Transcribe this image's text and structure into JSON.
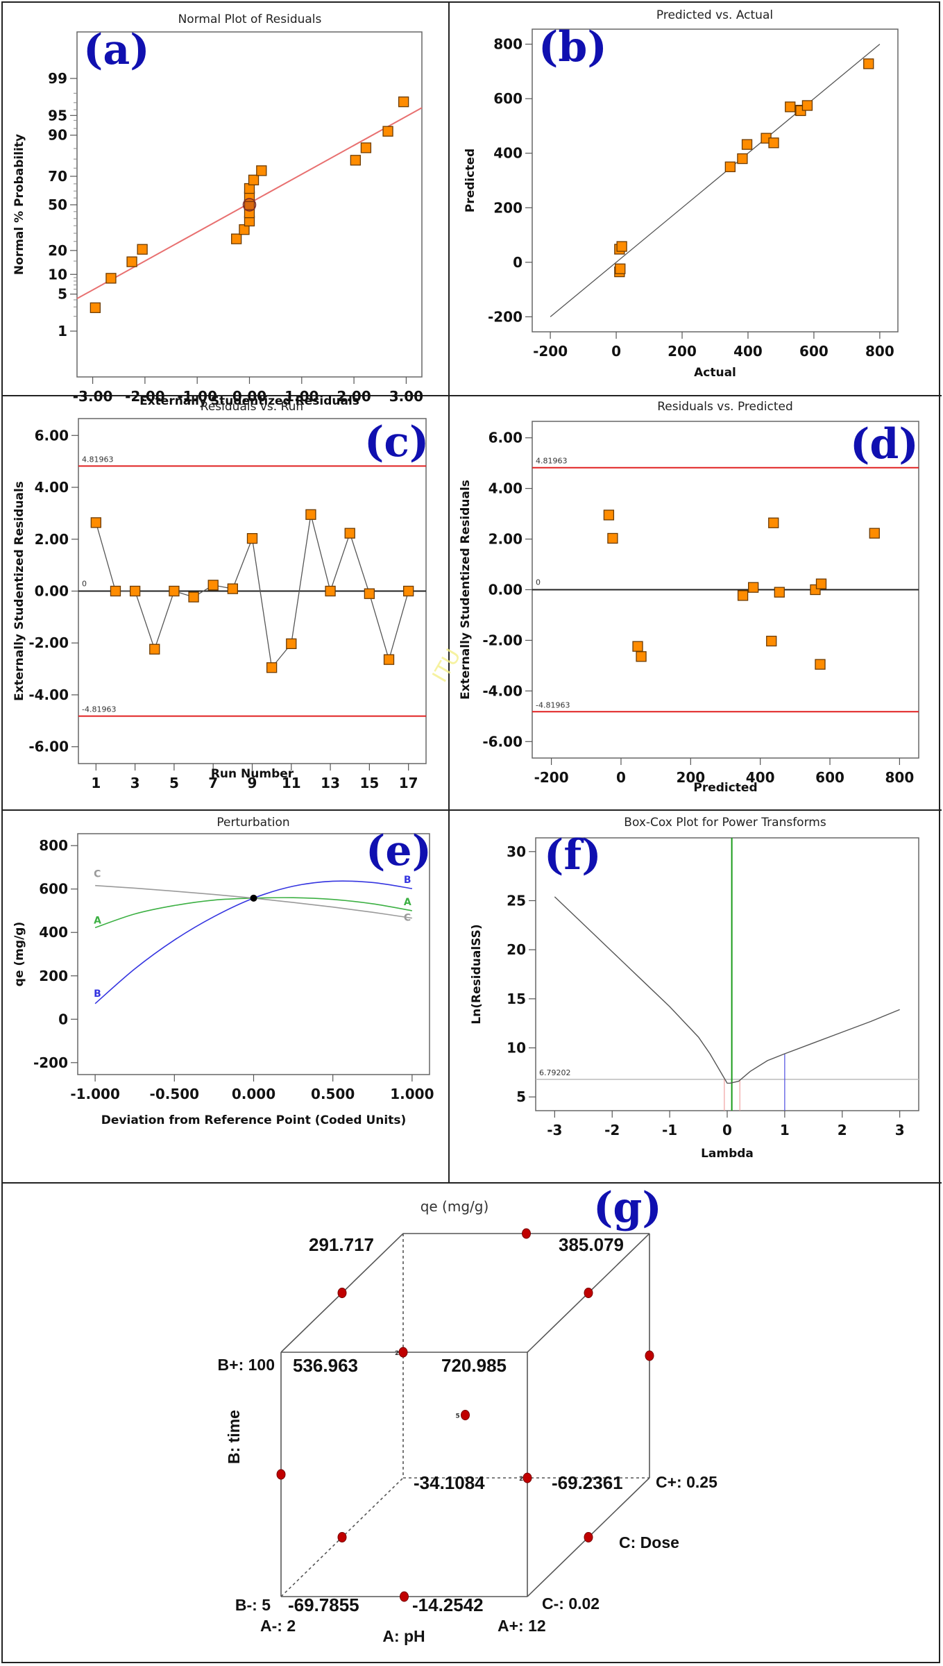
{
  "figure": {
    "watermark": "ITU"
  },
  "chart_data": [
    {
      "id": "a",
      "panel_letter": "(a)",
      "type": "scatter",
      "title": "Normal Plot of Residuals",
      "xlabel": "Externally Studentized Residuals",
      "ylabel": "Normal % Probability",
      "xlim": [
        -3.3,
        3.3
      ],
      "x_ticks": [
        "-3.00",
        "-2.00",
        "-1.00",
        "0.00",
        "1.00",
        "2.00",
        "3.00"
      ],
      "x_tick_values": [
        -3,
        -2,
        -1,
        0,
        1,
        2,
        3
      ],
      "y_scale": "normal-probability",
      "ylim_percent": [
        0.2,
        99.9
      ],
      "y_ticks": [
        "1",
        "5",
        "10",
        "20",
        "50",
        "70",
        "90",
        "95",
        "99"
      ],
      "y_tick_values": [
        1,
        5,
        10,
        20,
        50,
        70,
        90,
        95,
        99
      ],
      "points": [
        {
          "x": -2.95,
          "y": 2.9
        },
        {
          "x": -2.65,
          "y": 8.8
        },
        {
          "x": -2.25,
          "y": 14.7
        },
        {
          "x": -2.05,
          "y": 20.6
        },
        {
          "x": -0.25,
          "y": 26.5
        },
        {
          "x": -0.1,
          "y": 32.4
        },
        {
          "x": 0.0,
          "y": 38.2
        },
        {
          "x": 0.0,
          "y": 44.1
        },
        {
          "x": 0.0,
          "y": 50.0
        },
        {
          "x": 0.0,
          "y": 55.9
        },
        {
          "x": 0.0,
          "y": 61.8
        },
        {
          "x": 0.08,
          "y": 67.6
        },
        {
          "x": 0.23,
          "y": 73.5
        },
        {
          "x": 2.03,
          "y": 79.4
        },
        {
          "x": 2.23,
          "y": 85.3
        },
        {
          "x": 2.65,
          "y": 91.2
        },
        {
          "x": 2.95,
          "y": 97.1
        }
      ],
      "highlight_point": {
        "x": 0.0,
        "y": 50.0
      },
      "fit_line": {
        "x": [
          -3.3,
          3.3
        ],
        "y_percent": [
          4.2,
          96.3
        ]
      },
      "colors": {
        "marker": "#ff8c00",
        "marker_edge": "#6b3a00",
        "line": "#e87070"
      }
    },
    {
      "id": "b",
      "panel_letter": "(b)",
      "type": "scatter",
      "title": "Predicted vs. Actual",
      "xlabel": "Actual",
      "ylabel": "Predicted",
      "xlim": [
        -255,
        855
      ],
      "ylim": [
        -255,
        855
      ],
      "x_ticks": [
        "-200",
        "0",
        "200",
        "400",
        "600",
        "800"
      ],
      "x_tick_values": [
        -200,
        0,
        200,
        400,
        600,
        800
      ],
      "y_ticks": [
        "-200",
        "0",
        "200",
        "400",
        "600",
        "800"
      ],
      "y_tick_values": [
        -200,
        0,
        200,
        400,
        600,
        800
      ],
      "points": [
        {
          "x": 10,
          "y": -35
        },
        {
          "x": 12,
          "y": -24
        },
        {
          "x": 10,
          "y": 48
        },
        {
          "x": 17,
          "y": 58
        },
        {
          "x": 346,
          "y": 350
        },
        {
          "x": 383,
          "y": 380
        },
        {
          "x": 397,
          "y": 432
        },
        {
          "x": 455,
          "y": 455
        },
        {
          "x": 478,
          "y": 438
        },
        {
          "x": 528,
          "y": 570
        },
        {
          "x": 558,
          "y": 558
        },
        {
          "x": 560,
          "y": 556
        },
        {
          "x": 580,
          "y": 575
        },
        {
          "x": 766,
          "y": 728
        }
      ],
      "reference_line": {
        "x": [
          -200,
          800
        ],
        "y": [
          -200,
          800
        ]
      },
      "colors": {
        "marker": "#ff8c00",
        "marker_edge": "#6b3a00",
        "line": "#555555"
      }
    },
    {
      "id": "c",
      "panel_letter": "(c)",
      "type": "line",
      "title": "Residuals vs. Run",
      "xlabel": "Run Number",
      "ylabel": "Externally Studentized Residuals",
      "xlim": [
        0.1,
        17.9
      ],
      "ylim": [
        -6.65,
        6.65
      ],
      "x_ticks": [
        "1",
        "3",
        "5",
        "7",
        "9",
        "11",
        "13",
        "15",
        "17"
      ],
      "x_tick_values": [
        1,
        3,
        5,
        7,
        9,
        11,
        13,
        15,
        17
      ],
      "y_ticks": [
        "-6.00",
        "-4.00",
        "-2.00",
        "0.00",
        "2.00",
        "4.00",
        "6.00"
      ],
      "y_tick_values": [
        -6,
        -4,
        -2,
        0,
        2,
        4,
        6
      ],
      "x": [
        1,
        2,
        3,
        4,
        5,
        6,
        7,
        8,
        9,
        10,
        11,
        12,
        13,
        14,
        15,
        16,
        17
      ],
      "y": [
        2.64,
        0.0,
        0.0,
        -2.24,
        0.0,
        -0.23,
        0.23,
        0.09,
        2.03,
        -2.95,
        -2.03,
        2.95,
        0.0,
        2.23,
        -0.1,
        -2.64,
        0.0
      ],
      "limit_lines": [
        {
          "value": 4.81963,
          "label": "4.81963"
        },
        {
          "value": -4.81963,
          "label": "-4.81963"
        }
      ],
      "zero_line": {
        "value": 0,
        "label": "0"
      },
      "colors": {
        "marker": "#ff8c00",
        "marker_edge": "#6b3a00",
        "line": "#555555",
        "limit": "#e02020"
      }
    },
    {
      "id": "d",
      "panel_letter": "(d)",
      "type": "scatter",
      "title": "Residuals vs. Predicted",
      "xlabel": "Predicted",
      "ylabel": "Externally Studentized Residuals",
      "xlim": [
        -255,
        855
      ],
      "ylim": [
        -6.65,
        6.65
      ],
      "x_ticks": [
        "-200",
        "0",
        "200",
        "400",
        "600",
        "800"
      ],
      "x_tick_values": [
        -200,
        0,
        200,
        400,
        600,
        800
      ],
      "y_ticks": [
        "-6.00",
        "-4.00",
        "-2.00",
        "0.00",
        "2.00",
        "4.00",
        "6.00"
      ],
      "y_tick_values": [
        -6,
        -4,
        -2,
        0,
        2,
        4,
        6
      ],
      "points": [
        {
          "x": -35,
          "y": 2.95
        },
        {
          "x": -24,
          "y": 2.03
        },
        {
          "x": 48,
          "y": -2.24
        },
        {
          "x": 58,
          "y": -2.64
        },
        {
          "x": 350,
          "y": -0.23
        },
        {
          "x": 380,
          "y": 0.09
        },
        {
          "x": 432,
          "y": -2.03
        },
        {
          "x": 438,
          "y": 2.64
        },
        {
          "x": 455,
          "y": -0.1
        },
        {
          "x": 558,
          "y": 0.0
        },
        {
          "x": 572,
          "y": -2.95
        },
        {
          "x": 575,
          "y": 0.23
        },
        {
          "x": 728,
          "y": 2.23
        }
      ],
      "limit_lines": [
        {
          "value": 4.81963,
          "label": "4.81963"
        },
        {
          "value": -4.81963,
          "label": "-4.81963"
        }
      ],
      "zero_line": {
        "value": 0,
        "label": "0"
      },
      "colors": {
        "marker": "#ff8c00",
        "marker_edge": "#6b3a00",
        "limit": "#e02020"
      }
    },
    {
      "id": "e",
      "panel_letter": "(e)",
      "type": "line",
      "title": "Perturbation",
      "xlabel": "Deviation from Reference Point (Coded Units)",
      "ylabel": "qe (mg/g)",
      "xlim": [
        -1.11,
        1.11
      ],
      "ylim": [
        -255,
        855
      ],
      "x_ticks": [
        "-1.000",
        "-0.500",
        "0.000",
        "0.500",
        "1.000"
      ],
      "x_tick_values": [
        -1,
        -0.5,
        0,
        0.5,
        1
      ],
      "y_ticks": [
        "-200",
        "0",
        "200",
        "400",
        "600",
        "800"
      ],
      "y_tick_values": [
        -200,
        0,
        200,
        400,
        600,
        800
      ],
      "x": [
        -1,
        -0.75,
        -0.5,
        -0.25,
        0,
        0.25,
        0.5,
        0.75,
        1
      ],
      "series": [
        {
          "name": "A",
          "color": "#3cb043",
          "values": [
            422,
            485,
            524,
            549,
            558,
            560,
            552,
            532,
            500
          ]
        },
        {
          "name": "B",
          "color": "#3535e0",
          "values": [
            72,
            232,
            365,
            473,
            558,
            613,
            636,
            630,
            602
          ]
        },
        {
          "name": "C",
          "color": "#9a9a9a",
          "values": [
            616,
            604,
            590,
            575,
            558,
            538,
            517,
            493,
            466
          ]
        }
      ],
      "reference_point": {
        "x": 0,
        "y": 558
      }
    },
    {
      "id": "f",
      "panel_letter": "(f)",
      "type": "line",
      "title": "Box-Cox Plot for Power Transforms",
      "xlabel": "Lambda",
      "ylabel": "Ln(ResidualSS)",
      "xlim": [
        -3.33,
        3.33
      ],
      "ylim": [
        3.6,
        31.4
      ],
      "x_ticks": [
        "-3",
        "-2",
        "-1",
        "0",
        "1",
        "2",
        "3"
      ],
      "x_tick_values": [
        -3,
        -2,
        -1,
        0,
        1,
        2,
        3
      ],
      "y_ticks": [
        "5",
        "10",
        "15",
        "20",
        "25",
        "30"
      ],
      "y_tick_values": [
        5,
        10,
        15,
        20,
        25,
        30
      ],
      "x": [
        -3,
        -2.5,
        -2,
        -1.5,
        -1,
        -0.5,
        -0.3,
        -0.1,
        0.0,
        0.05,
        0.2,
        0.4,
        0.7,
        1.0,
        1.5,
        2.0,
        2.5,
        3.0
      ],
      "y": [
        25.4,
        22.6,
        19.8,
        17.0,
        14.2,
        11.1,
        9.4,
        7.4,
        6.4,
        6.4,
        6.6,
        7.6,
        8.7,
        9.4,
        10.5,
        11.6,
        12.7,
        13.9
      ],
      "ci_line": {
        "value": 6.79202,
        "label": "6.79202"
      },
      "best_lambda": 0.08,
      "ci_low": -0.05,
      "ci_high": 0.22,
      "current_lambda": 1,
      "colors": {
        "curve": "#555555",
        "best": "#1a9a1a",
        "ci": "#f0a0a0",
        "current": "#4a4ae0",
        "ci_line": "#bbbbbb"
      }
    },
    {
      "id": "g",
      "panel_letter": "(g)",
      "type": "cube",
      "title": "qe (mg/g)",
      "factors": {
        "A": {
          "name": "A: pH",
          "low": "A-: 2",
          "high": "A+: 12"
        },
        "B": {
          "name": "B: time",
          "low": "B-: 5",
          "high": "B+: 100"
        },
        "C": {
          "name": "C: Dose",
          "low": "C-: 0.02",
          "high": "C+: 0.25"
        }
      },
      "corners": {
        "A-B-C-": "-69.7855",
        "A+B-C-": "-14.2542",
        "A-B+C-": "536.963",
        "A+B+C-": "720.985",
        "A-B-C+": "-34.1084",
        "A+B-C+": "-69.2361",
        "A-B+C+": "291.717",
        "A+B+C+": "385.079"
      },
      "center_replicates": "5",
      "edge_replicate_label": "2"
    }
  ]
}
